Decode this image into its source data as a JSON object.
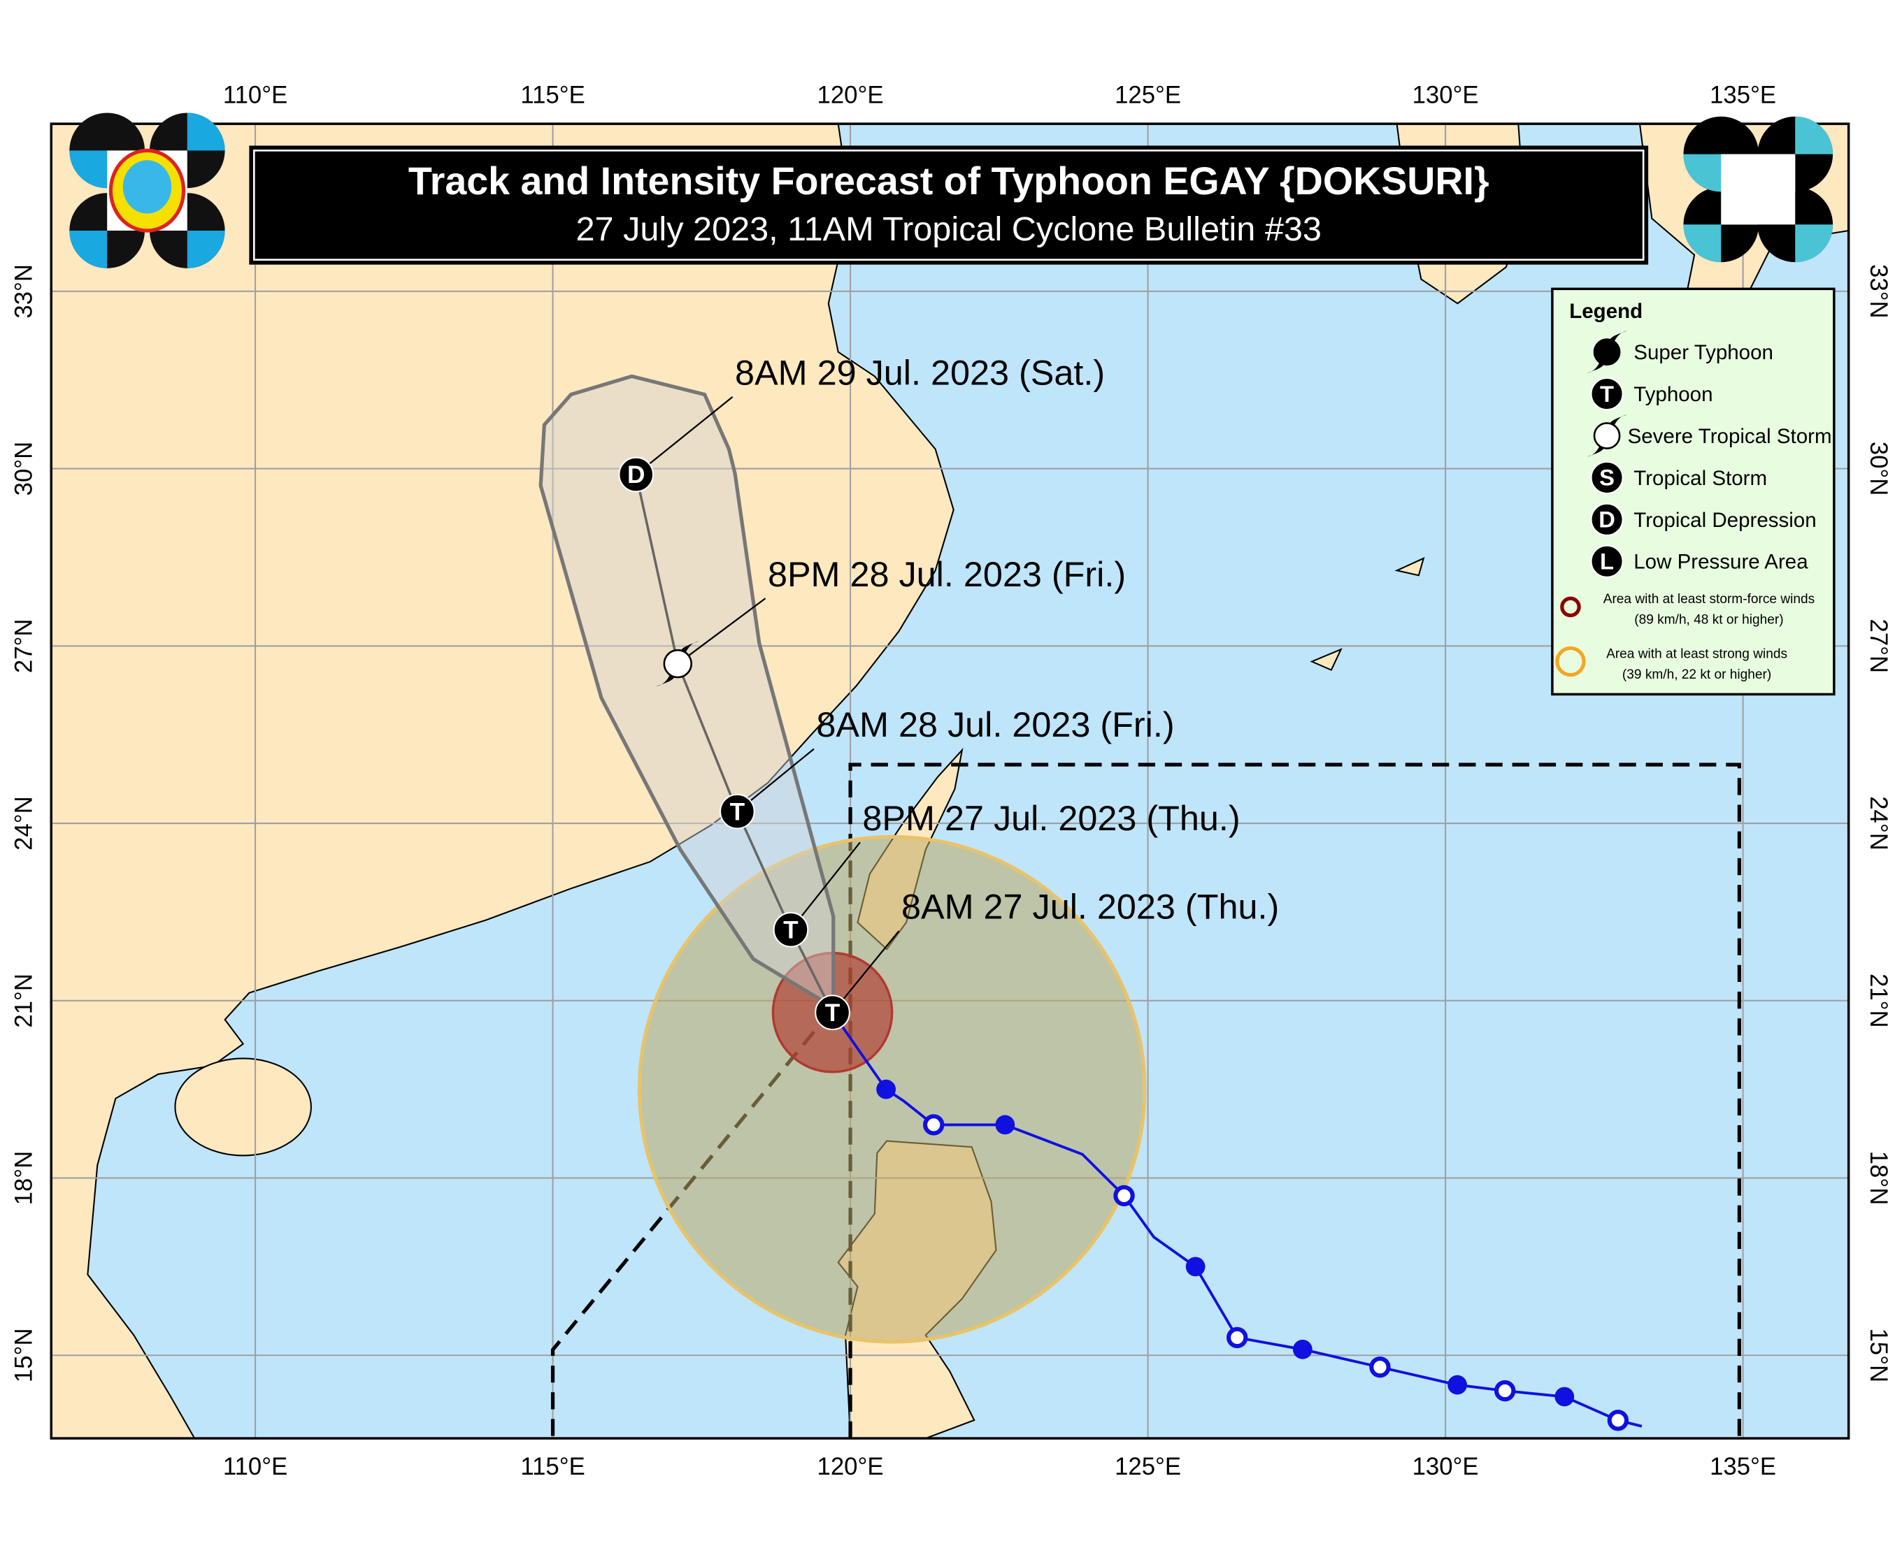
{
  "header": {
    "title": "Track and Intensity Forecast of  Typhoon EGAY {DOKSURI}",
    "subtitle": "27 July 2023, 11AM Tropical Cyclone Bulletin #33"
  },
  "axes": {
    "lon_ticks": [
      "110°E",
      "115°E",
      "120°E",
      "125°E",
      "130°E",
      "135°E"
    ],
    "lat_ticks": [
      "33°N",
      "30°N",
      "27°N",
      "24°N",
      "21°N",
      "18°N",
      "15°N"
    ],
    "lon_values": [
      110,
      115,
      120,
      125,
      130,
      135
    ],
    "lat_values": [
      33,
      30,
      27,
      24,
      21,
      18,
      15
    ]
  },
  "legend": {
    "title": "Legend",
    "items": [
      {
        "symbol": "super-typhoon",
        "label": "Super Typhoon"
      },
      {
        "symbol": "T",
        "label": "Typhoon"
      },
      {
        "symbol": "severe-tropical-storm",
        "label": "Severe Tropical Storm"
      },
      {
        "symbol": "S",
        "label": "Tropical Storm"
      },
      {
        "symbol": "D",
        "label": "Tropical Depression"
      },
      {
        "symbol": "L",
        "label": "Low Pressure Area"
      }
    ],
    "storm_force": {
      "line1": "Area with at least storm-force winds",
      "line2": "(89 km/h, 48 kt or higher)",
      "color": "#8b0000"
    },
    "strong_winds": {
      "line1": "Area with at least strong winds",
      "line2": "(39 km/h, 22 kt or higher)",
      "color": "#f5a623"
    }
  },
  "forecast": [
    {
      "label": "8AM 27 Jul. 2023 (Thu.)",
      "lon": 119.7,
      "lat": 20.8,
      "symbol": "T"
    },
    {
      "label": "8PM 27 Jul. 2023 (Thu.)",
      "lon": 119.0,
      "lat": 22.2,
      "symbol": "T"
    },
    {
      "label": "8AM 28 Jul. 2023 (Fri.)",
      "lon": 118.1,
      "lat": 24.2,
      "symbol": "T"
    },
    {
      "label": "8PM 28 Jul. 2023 (Fri.)",
      "lon": 117.1,
      "lat": 26.7,
      "symbol": "severe-tropical-storm"
    },
    {
      "label": "8AM 29 Jul. 2023 (Sat.)",
      "lon": 116.4,
      "lat": 29.9,
      "symbol": "D"
    }
  ],
  "past_track": [
    {
      "lon": 133.3,
      "lat": 13.8,
      "marker": "none"
    },
    {
      "lon": 132.9,
      "lat": 13.9,
      "marker": "open"
    },
    {
      "lon": 132.0,
      "lat": 14.3,
      "marker": "filled"
    },
    {
      "lon": 131.0,
      "lat": 14.4,
      "marker": "open"
    },
    {
      "lon": 130.2,
      "lat": 14.5,
      "marker": "filled"
    },
    {
      "lon": 128.9,
      "lat": 14.8,
      "marker": "open"
    },
    {
      "lon": 127.6,
      "lat": 15.1,
      "marker": "filled"
    },
    {
      "lon": 126.5,
      "lat": 15.3,
      "marker": "open"
    },
    {
      "lon": 125.8,
      "lat": 16.5,
      "marker": "filled"
    },
    {
      "lon": 125.1,
      "lat": 17.0,
      "marker": "none"
    },
    {
      "lon": 124.6,
      "lat": 17.7,
      "marker": "open"
    },
    {
      "lon": 123.9,
      "lat": 18.4,
      "marker": "none"
    },
    {
      "lon": 122.6,
      "lat": 18.9,
      "marker": "filled"
    },
    {
      "lon": 121.4,
      "lat": 18.9,
      "marker": "open"
    },
    {
      "lon": 120.9,
      "lat": 19.3,
      "marker": "none"
    },
    {
      "lon": 120.6,
      "lat": 19.5,
      "marker": "filled"
    },
    {
      "lon": 119.7,
      "lat": 20.8,
      "marker": "none"
    }
  ],
  "wind_areas": {
    "storm_force": {
      "lon": 119.7,
      "lat": 20.8,
      "color": "#b03a2e"
    },
    "strong": {
      "lon": 120.7,
      "lat": 19.5,
      "color": "#e8c36a"
    }
  },
  "colors": {
    "sea": "#bfe5fb",
    "land": "#fde8c0",
    "track": "#1010e0",
    "cone": "#d9d9d9",
    "legend_bg": "#e8fde0"
  }
}
